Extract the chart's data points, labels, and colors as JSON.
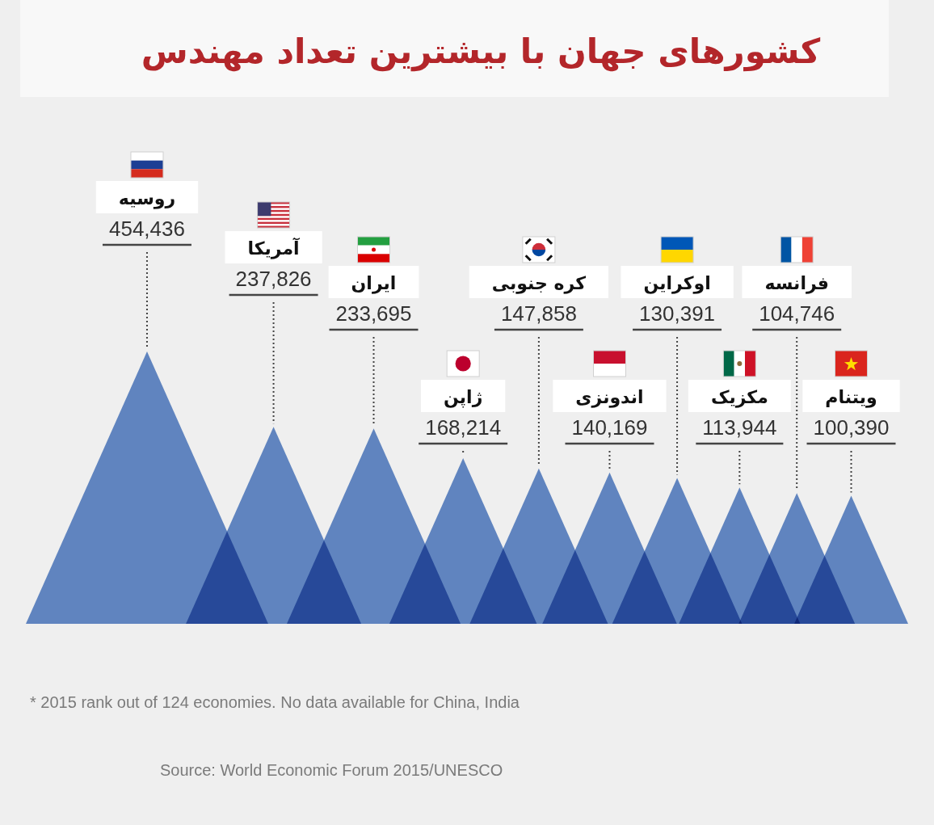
{
  "chart_data": {
    "type": "other",
    "title": "کشورهای جهان با بیشترین تعداد مهندس",
    "categories": [
      "روسیه",
      "آمریکا",
      "ایران",
      "ژاپن",
      "کره جنوبی",
      "اندونزی",
      "اوکراین",
      "مکزیک",
      "فرانسه",
      "ویتنام"
    ],
    "values": [
      454436,
      237826,
      233695,
      168214,
      147858,
      140169,
      130391,
      113944,
      104746,
      100390
    ],
    "value_labels": [
      "454,436",
      "237,826",
      "233,695",
      "168,214",
      "147,858",
      "140,169",
      "130,391",
      "113,944",
      "104,746",
      "100,390"
    ],
    "color": "#668dcc",
    "annotations": [
      "* 2015 rank out of 124 economies. No data available for China, India",
      "Source: World Economic Forum 2015/UNESCO"
    ]
  }
}
